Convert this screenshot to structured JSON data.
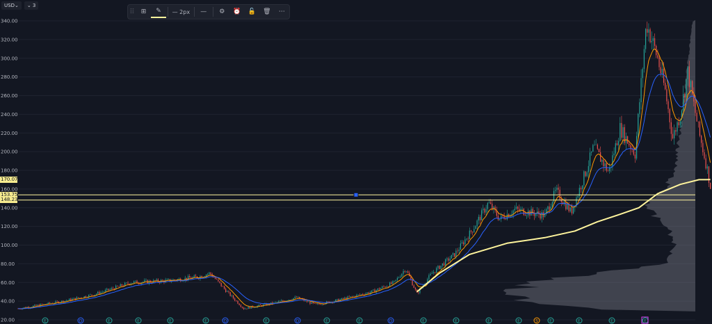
{
  "header": {
    "currency": "USD",
    "currency_caret": "⌄",
    "interval_badge": "⌄ 3"
  },
  "toolbar": {
    "items": [
      {
        "name": "grip-icon",
        "glyph": "⠿"
      },
      {
        "name": "template-icon",
        "glyph": "⊞"
      },
      {
        "name": "pencil-icon",
        "glyph": "✎"
      },
      {
        "name": "line-width",
        "glyph": "— 2px"
      },
      {
        "name": "line-style-icon",
        "glyph": "—"
      },
      {
        "name": "settings-icon",
        "glyph": "⚙"
      },
      {
        "name": "alert-clock-icon",
        "glyph": "⏰"
      },
      {
        "name": "lock-icon",
        "glyph": "🔓"
      },
      {
        "name": "trash-icon",
        "glyph": "🗑"
      },
      {
        "name": "more-icon",
        "glyph": "⋯"
      }
    ]
  },
  "colors": {
    "background": "#131722",
    "grid": "#1f2330",
    "up": "#26a69a",
    "down": "#ef5350",
    "ema_orange": "#ff9800",
    "ema_blue": "#2962ff",
    "vwap": "#fff59d",
    "hline": "#fff59d",
    "volume_profile": "#787b86"
  },
  "chart_data": {
    "type": "line",
    "ylim": [
      20,
      345
    ],
    "y_ticks": [
      340,
      320,
      300,
      280,
      260,
      240,
      220,
      200,
      180,
      160,
      140,
      120,
      100,
      80,
      60,
      40,
      20
    ],
    "y_tick_labels": [
      "340.00",
      "320.00",
      "300.00",
      "280.00",
      "260.00",
      "240.00",
      "220.00",
      "200.00",
      "180.00",
      "160.00",
      "140.00",
      "120.00",
      "100.00",
      "80.00",
      "60.00",
      "40.00",
      "20.00"
    ],
    "price_labels": [
      {
        "value": 170.07,
        "text": "170.07"
      },
      {
        "value": 153.75,
        "text": "153.75"
      },
      {
        "value": 148.23,
        "text": "148.23"
      }
    ],
    "horizontal_lines": [
      153.75,
      148.23
    ],
    "bar_count": 900,
    "series": [
      {
        "values_key": "close",
        "values": [
          {
            "i": 0,
            "v": 32
          },
          {
            "i": 60,
            "v": 40
          },
          {
            "i": 100,
            "v": 47
          },
          {
            "i": 120,
            "v": 52
          },
          {
            "i": 150,
            "v": 60
          },
          {
            "i": 200,
            "v": 62
          },
          {
            "i": 240,
            "v": 66
          },
          {
            "i": 255,
            "v": 70
          },
          {
            "i": 280,
            "v": 48
          },
          {
            "i": 300,
            "v": 32
          },
          {
            "i": 340,
            "v": 38
          },
          {
            "i": 370,
            "v": 44
          },
          {
            "i": 395,
            "v": 36
          },
          {
            "i": 430,
            "v": 42
          },
          {
            "i": 470,
            "v": 50
          },
          {
            "i": 500,
            "v": 60
          },
          {
            "i": 515,
            "v": 75
          },
          {
            "i": 530,
            "v": 48
          },
          {
            "i": 550,
            "v": 70
          },
          {
            "i": 580,
            "v": 90
          },
          {
            "i": 605,
            "v": 118
          },
          {
            "i": 625,
            "v": 145
          },
          {
            "i": 640,
            "v": 128
          },
          {
            "i": 660,
            "v": 138
          },
          {
            "i": 700,
            "v": 132
          },
          {
            "i": 715,
            "v": 158
          },
          {
            "i": 735,
            "v": 135
          },
          {
            "i": 755,
            "v": 180
          },
          {
            "i": 765,
            "v": 205
          },
          {
            "i": 785,
            "v": 178
          },
          {
            "i": 800,
            "v": 225
          },
          {
            "i": 820,
            "v": 198
          },
          {
            "i": 835,
            "v": 338
          },
          {
            "i": 850,
            "v": 300
          },
          {
            "i": 860,
            "v": 265
          },
          {
            "i": 870,
            "v": 215
          },
          {
            "i": 880,
            "v": 240
          },
          {
            "i": 890,
            "v": 285
          },
          {
            "i": 905,
            "v": 220
          },
          {
            "i": 915,
            "v": 185
          },
          {
            "i": 920,
            "v": 163
          }
        ]
      }
    ],
    "vwap": [
      {
        "i": 530,
        "v": 50
      },
      {
        "i": 560,
        "v": 70
      },
      {
        "i": 600,
        "v": 90
      },
      {
        "i": 650,
        "v": 102
      },
      {
        "i": 700,
        "v": 108
      },
      {
        "i": 740,
        "v": 115
      },
      {
        "i": 770,
        "v": 125
      },
      {
        "i": 800,
        "v": 133
      },
      {
        "i": 825,
        "v": 140
      },
      {
        "i": 850,
        "v": 155
      },
      {
        "i": 880,
        "v": 165
      },
      {
        "i": 905,
        "v": 170
      },
      {
        "i": 920,
        "v": 170.07
      }
    ],
    "earnings_markers": [
      {
        "x": 65,
        "t": "E"
      },
      {
        "x": 116,
        "t": "D"
      },
      {
        "x": 157,
        "t": "E"
      },
      {
        "x": 199,
        "t": "E"
      },
      {
        "x": 245,
        "t": "E"
      },
      {
        "x": 296,
        "t": "E"
      },
      {
        "x": 324,
        "t": "D"
      },
      {
        "x": 383,
        "t": "E"
      },
      {
        "x": 428,
        "t": "D"
      },
      {
        "x": 470,
        "t": "E"
      },
      {
        "x": 517,
        "t": "E"
      },
      {
        "x": 562,
        "t": "D"
      },
      {
        "x": 609,
        "t": "E"
      },
      {
        "x": 656,
        "t": "E"
      },
      {
        "x": 703,
        "t": "E"
      },
      {
        "x": 746,
        "t": "E"
      },
      {
        "x": 772,
        "t": "S"
      },
      {
        "x": 792,
        "t": "E"
      },
      {
        "x": 833,
        "t": "E"
      },
      {
        "x": 880,
        "t": "E"
      },
      {
        "x": 928,
        "t": "E"
      }
    ]
  }
}
